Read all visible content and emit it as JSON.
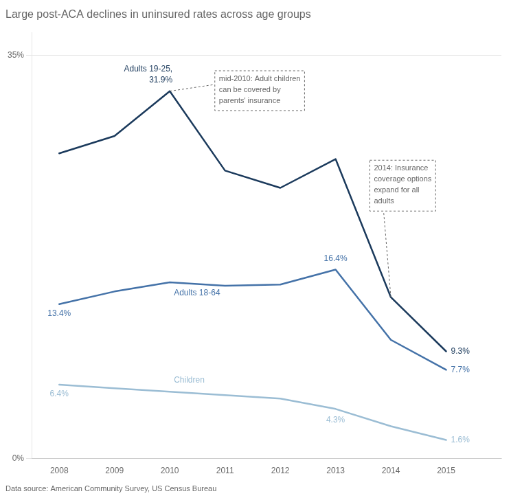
{
  "chart_data": {
    "type": "line",
    "title": "Large post-ACA declines in uninsured rates across age groups",
    "x": [
      2008,
      2009,
      2010,
      2011,
      2012,
      2013,
      2014,
      2015
    ],
    "series": [
      {
        "name": "Adults 19-25,",
        "color": "#1b3a5c",
        "values": [
          26.5,
          28.0,
          31.9,
          25.0,
          23.5,
          26.0,
          14.0,
          9.3
        ],
        "value_labels": [
          null,
          null,
          "31.9%",
          null,
          null,
          null,
          null,
          "9.3%"
        ]
      },
      {
        "name": "Adults 18-64",
        "color": "#4472a8",
        "values": [
          13.4,
          14.5,
          15.3,
          15.0,
          15.1,
          16.4,
          10.3,
          7.7
        ],
        "value_labels": [
          "13.4%",
          null,
          null,
          null,
          null,
          "16.4%",
          null,
          "7.7%"
        ]
      },
      {
        "name": "Children",
        "color": "#9bbdd4",
        "values": [
          6.4,
          6.1,
          5.8,
          5.5,
          5.2,
          4.3,
          2.8,
          1.6
        ],
        "value_labels": [
          "6.4%",
          null,
          null,
          null,
          null,
          "4.3%",
          null,
          "1.6%"
        ]
      }
    ],
    "xlim": [
      2007.5,
      2016.0
    ],
    "xticks": [
      2008,
      2009,
      2010,
      2011,
      2012,
      2013,
      2014,
      2015
    ],
    "ylim": [
      0,
      37
    ],
    "yticks": [
      {
        "value": 0,
        "label": "0%"
      },
      {
        "value": 35,
        "label": "35%"
      }
    ],
    "grid": "y",
    "data_labels": true,
    "annotations": [
      "mid-2010: Adult children\ncan be covered by\nparents' insurance",
      "2014: Insurance\ncoverage options\nexpand for all\nadults"
    ],
    "source": "Data source: American Community Survey, US Census Bureau"
  }
}
